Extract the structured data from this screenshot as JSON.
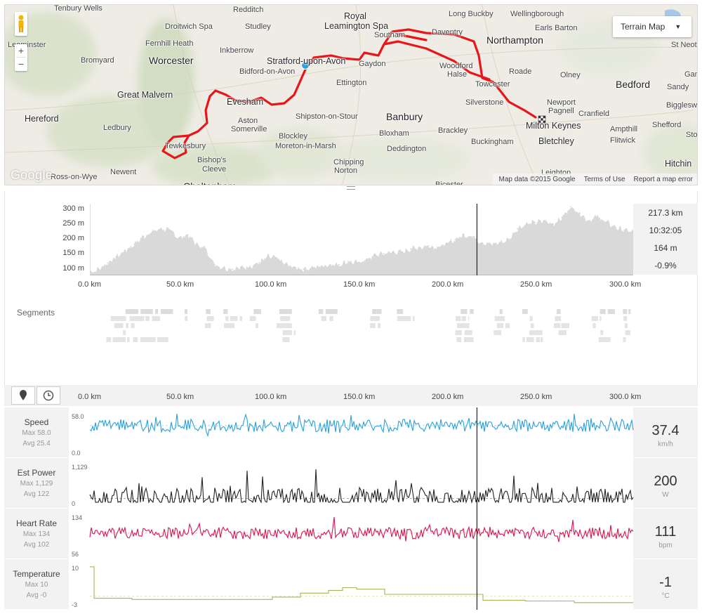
{
  "map": {
    "type_button": "Terrain Map",
    "zoom_in": "+",
    "zoom_out": "−",
    "google_logo": "Google",
    "attribution": [
      "Map data ©2015 Google",
      "Terms of Use",
      "Report a map error"
    ],
    "towns": [
      {
        "name": "Tenbury Wells",
        "cls": "t-sm"
      },
      {
        "name": "Redditch",
        "cls": "t-sm"
      },
      {
        "name": "Royal",
        "cls": "t-mid"
      },
      {
        "name": "Leamington Spa",
        "cls": "t-mid"
      },
      {
        "name": "Long Buckby",
        "cls": "t-sm"
      },
      {
        "name": "Wellingborough",
        "cls": "t-sm"
      },
      {
        "name": "Droitwich Spa",
        "cls": "t-sm"
      },
      {
        "name": "Studley",
        "cls": "t-sm"
      },
      {
        "name": "Southam",
        "cls": "t-sm"
      },
      {
        "name": "Daventry",
        "cls": "t-sm"
      },
      {
        "name": "Earls Barton",
        "cls": "t-sm"
      },
      {
        "name": "Leominster",
        "cls": "t-sm"
      },
      {
        "name": "Fernhill Heath",
        "cls": "t-sm"
      },
      {
        "name": "Northampton",
        "cls": "t-big"
      },
      {
        "name": "St Neots",
        "cls": "t-sm"
      },
      {
        "name": "Bromyard",
        "cls": "t-sm"
      },
      {
        "name": "Worcester",
        "cls": "t-big"
      },
      {
        "name": "Inkberrow",
        "cls": "t-sm"
      },
      {
        "name": "Stratford-upon-Avon",
        "cls": "t-mid"
      },
      {
        "name": "Gaydon",
        "cls": "t-sm"
      },
      {
        "name": "Woodford",
        "cls": "t-sm"
      },
      {
        "name": "Halse",
        "cls": "t-sm"
      },
      {
        "name": "Roade",
        "cls": "t-sm"
      },
      {
        "name": "Olney",
        "cls": "t-sm"
      },
      {
        "name": "Bidford-on-Avon",
        "cls": "t-sm"
      },
      {
        "name": "Great Malvern",
        "cls": "t-mid"
      },
      {
        "name": "Ettington",
        "cls": "t-sm"
      },
      {
        "name": "Towcester",
        "cls": "t-sm"
      },
      {
        "name": "Bedford",
        "cls": "t-big"
      },
      {
        "name": "Sandy",
        "cls": "t-sm"
      },
      {
        "name": "Evesham",
        "cls": "t-mid"
      },
      {
        "name": "Silverstone",
        "cls": "t-sm"
      },
      {
        "name": "Newport",
        "cls": "t-sm"
      },
      {
        "name": "Pagnell",
        "cls": "t-sm"
      },
      {
        "name": "Biggleswade",
        "cls": "t-sm"
      },
      {
        "name": "Hereford",
        "cls": "t-mid"
      },
      {
        "name": "Shipston-on-Stour",
        "cls": "t-sm"
      },
      {
        "name": "Banbury",
        "cls": "t-big"
      },
      {
        "name": "Cranfield",
        "cls": "t-sm"
      },
      {
        "name": "Aston",
        "cls": "t-sm"
      },
      {
        "name": "Somerville",
        "cls": "t-sm"
      },
      {
        "name": "Ledbury",
        "cls": "t-sm"
      },
      {
        "name": "Milton Keynes",
        "cls": "t-mid"
      },
      {
        "name": "Shefford",
        "cls": "t-sm"
      },
      {
        "name": "Blockley",
        "cls": "t-sm"
      },
      {
        "name": "Bloxham",
        "cls": "t-sm"
      },
      {
        "name": "Brackley",
        "cls": "t-sm"
      },
      {
        "name": "Ampthill",
        "cls": "t-sm"
      },
      {
        "name": "Flitwick",
        "cls": "t-sm"
      },
      {
        "name": "Tewkesbury",
        "cls": "t-sm"
      },
      {
        "name": "Moreton-in-Marsh",
        "cls": "t-sm"
      },
      {
        "name": "Buckingham",
        "cls": "t-sm"
      },
      {
        "name": "Bletchley",
        "cls": "t-mid"
      },
      {
        "name": "Deddington",
        "cls": "t-sm"
      },
      {
        "name": "Bishop's",
        "cls": "t-sm"
      },
      {
        "name": "Cleeve",
        "cls": "t-sm"
      },
      {
        "name": "Chipping",
        "cls": "t-sm"
      },
      {
        "name": "Norton",
        "cls": "t-sm"
      },
      {
        "name": "Hitchin",
        "cls": "t-mid"
      },
      {
        "name": "Ross-on-Wye",
        "cls": "t-sm"
      },
      {
        "name": "Newent",
        "cls": "t-sm"
      },
      {
        "name": "Leighton",
        "cls": "t-sm"
      },
      {
        "name": "Cheltenham",
        "cls": "t-big"
      },
      {
        "name": "Bicester",
        "cls": "t-sm"
      },
      {
        "name": "Gam",
        "cls": "t-sm"
      },
      {
        "name": "Stotf",
        "cls": "t-sm"
      }
    ],
    "colors": {
      "route": "#e8151b",
      "marker": "#2aa1d9",
      "land": "#eeece4",
      "hills": "#cfdcc0"
    }
  },
  "elevation": {
    "y_ticks": [
      "300 m",
      "250 m",
      "200 m",
      "150 m",
      "100 m"
    ],
    "x_ticks": [
      "0.0 km",
      "50.0 km",
      "100.0 km",
      "150.0 km",
      "200.0 km",
      "250.0 km",
      "300.0 km"
    ],
    "stats": [
      "217.3 km",
      "10:32:05",
      "164 m",
      "-0.9%"
    ],
    "segments_label": "Segments",
    "colors": {
      "fill": "#d9d9d9",
      "cursor": "#222222"
    }
  },
  "chart_data": {
    "type": "area",
    "title": "",
    "xlabel": "",
    "ylabel": "",
    "x_unit": "km",
    "xlim": [
      0,
      305
    ],
    "ylim": [
      75,
      305
    ],
    "cursor_km": 217.3,
    "x": [
      0,
      5,
      10,
      15,
      20,
      25,
      30,
      35,
      40,
      45,
      50,
      55,
      60,
      65,
      70,
      75,
      80,
      85,
      90,
      95,
      100,
      105,
      110,
      115,
      120,
      125,
      130,
      135,
      140,
      145,
      150,
      155,
      160,
      165,
      170,
      175,
      180,
      185,
      190,
      195,
      200,
      205,
      210,
      215,
      220,
      225,
      230,
      235,
      240,
      245,
      250,
      255,
      260,
      265,
      270,
      275,
      280,
      285,
      290,
      295,
      300,
      305
    ],
    "y": [
      85,
      95,
      115,
      135,
      155,
      175,
      200,
      215,
      225,
      220,
      195,
      205,
      175,
      160,
      110,
      100,
      95,
      100,
      105,
      115,
      135,
      130,
      110,
      100,
      95,
      100,
      105,
      110,
      110,
      120,
      115,
      125,
      140,
      145,
      150,
      150,
      160,
      165,
      170,
      165,
      175,
      190,
      205,
      200,
      180,
      175,
      180,
      190,
      225,
      240,
      245,
      250,
      240,
      260,
      295,
      275,
      250,
      265,
      245,
      230,
      220,
      215
    ]
  },
  "streams": {
    "x_ticks": [
      "0.0 km",
      "50.0 km",
      "100.0 km",
      "150.0 km",
      "200.0 km",
      "250.0 km",
      "300.0 km"
    ],
    "mode_icons": [
      "map-pin",
      "clock"
    ],
    "rows": [
      {
        "name": "Speed",
        "max": "Max 58.0",
        "avg": "Avg 25.4",
        "ymax": "58.0",
        "ymin": "0.0",
        "value": "37.4",
        "unit": "km/h",
        "color": "#2aa1d9",
        "base": 0.68,
        "amp": 0.33
      },
      {
        "name": "Est Power",
        "max": "Max 1,129",
        "avg": "Avg 122",
        "ymax": "1,129",
        "ymin": "0",
        "value": "200",
        "unit": "W",
        "color": "#222222",
        "base": 0.12,
        "amp": 0.55
      },
      {
        "name": "Heart Rate",
        "max": "Max 134",
        "avg": "Avg 102",
        "ymax": "134",
        "ymin": "56",
        "value": "111",
        "unit": "bpm",
        "color": "#d4174f",
        "base": 0.52,
        "amp": 0.3
      },
      {
        "name": "Temperature",
        "max": "Max 10",
        "avg": "Avg -0",
        "ymax": "10",
        "ymin": "-3",
        "value": "-1",
        "unit": "°C",
        "color": "#a8b45a",
        "base": 0.2,
        "amp": 0.0
      }
    ]
  }
}
